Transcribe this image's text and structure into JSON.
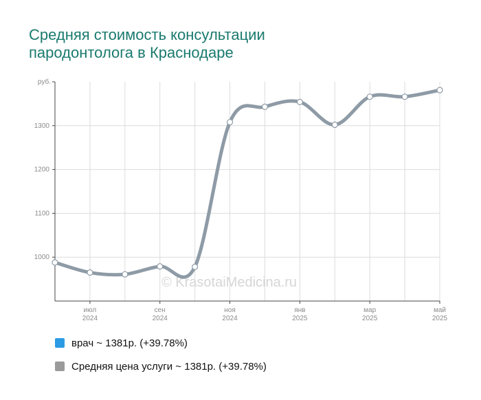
{
  "title": {
    "line1": "Средняя стоимость консультации",
    "line2": "пародонтолога в Краснодаре"
  },
  "watermark": "© KrasotaiMedicina.ru",
  "colors": {
    "title": "#1a7a6e",
    "series_line": "#8e9ba6",
    "legend_doctor": "#2b9be3",
    "legend_avg": "#9a9a9a",
    "grid": "#dcdcdc"
  },
  "legend": [
    {
      "label": "врач ~ 1381р. (+39.78%)",
      "color": "#2b9be3"
    },
    {
      "label": "Средняя цена услуги ~ 1381р. (+39.78%)",
      "color": "#9a9a9a"
    }
  ],
  "chart_data": {
    "type": "line",
    "title": "Средняя стоимость консультации пародонтолога в Краснодаре",
    "ylabel": "руб.",
    "ylim": [
      900,
      1400
    ],
    "yticks": [
      1000,
      1100,
      1200,
      1300
    ],
    "x": [
      "2024-06",
      "2024-07",
      "2024-08",
      "2024-09",
      "2024-10",
      "2024-11",
      "2024-12",
      "2025-01",
      "2025-02",
      "2025-03",
      "2025-04",
      "2025-05"
    ],
    "xtick_labels": [
      {
        "month": "июл",
        "year": "2024"
      },
      {
        "month": "сен",
        "year": "2024"
      },
      {
        "month": "ноя",
        "year": "2024"
      },
      {
        "month": "янв",
        "year": "2025"
      },
      {
        "month": "мар",
        "year": "2025"
      },
      {
        "month": "май",
        "year": "2025"
      }
    ],
    "series": [
      {
        "name": "Средняя цена услуги",
        "values": [
          988,
          965,
          961,
          979,
          978,
          1308,
          1343,
          1354,
          1302,
          1366,
          1366,
          1381
        ]
      }
    ],
    "grid": true
  }
}
